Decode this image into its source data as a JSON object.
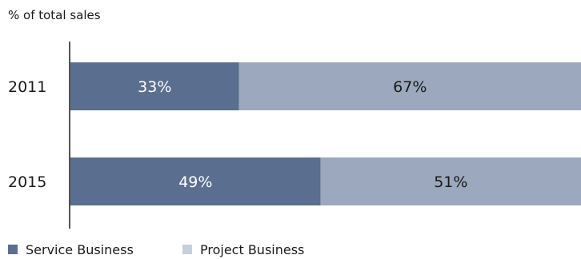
{
  "chart_data": {
    "type": "bar",
    "orientation": "horizontal",
    "stacked": true,
    "ylabel": "% of total sales",
    "categories": [
      "2011",
      "2015"
    ],
    "series": [
      {
        "name": "Service Business",
        "values": [
          33,
          49
        ],
        "labels": [
          "33%",
          "49%"
        ],
        "color": "#5a6e8f",
        "label_color": "#ffffff"
      },
      {
        "name": "Project Business",
        "values": [
          67,
          51
        ],
        "labels": [
          "67%",
          "51%"
        ],
        "color": "#9ba8bd",
        "label_color": "#1a1a1a"
      }
    ],
    "xlim": [
      0,
      100
    ],
    "grid": false,
    "legend_position": "bottom-left",
    "legend_colors": [
      "#5a6e8f",
      "#c6cfdc"
    ]
  }
}
